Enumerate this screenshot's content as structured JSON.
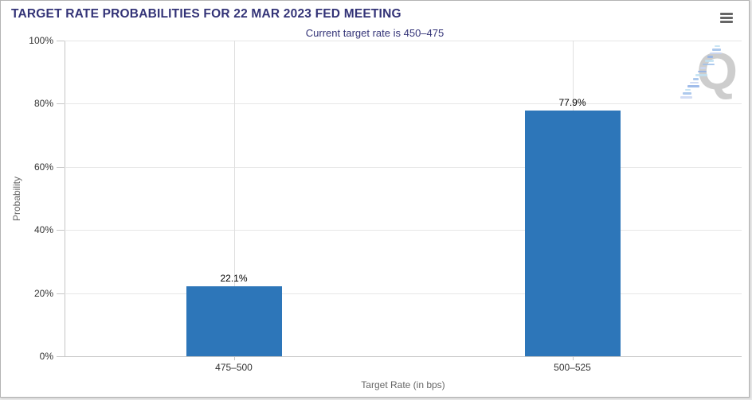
{
  "header": {
    "menu_tooltip": "Chart context menu"
  },
  "chart_data": {
    "type": "bar",
    "title": "TARGET RATE PROBABILITIES FOR 22 MAR 2023 FED MEETING",
    "subtitle": "Current target rate is 450–475",
    "categories": [
      "475–500",
      "500–525"
    ],
    "values": [
      22.1,
      77.9
    ],
    "value_labels": [
      "22.1%",
      "77.9%"
    ],
    "xlabel": "Target Rate (in bps)",
    "ylabel": "Probability",
    "ylim": [
      0,
      100
    ],
    "yticks": [
      "0%",
      "20%",
      "40%",
      "60%",
      "80%",
      "100%"
    ],
    "legend": "none",
    "grid": true,
    "bar_color": "#2d76b9",
    "title_color": "#333377",
    "watermark_letter": "Q"
  }
}
